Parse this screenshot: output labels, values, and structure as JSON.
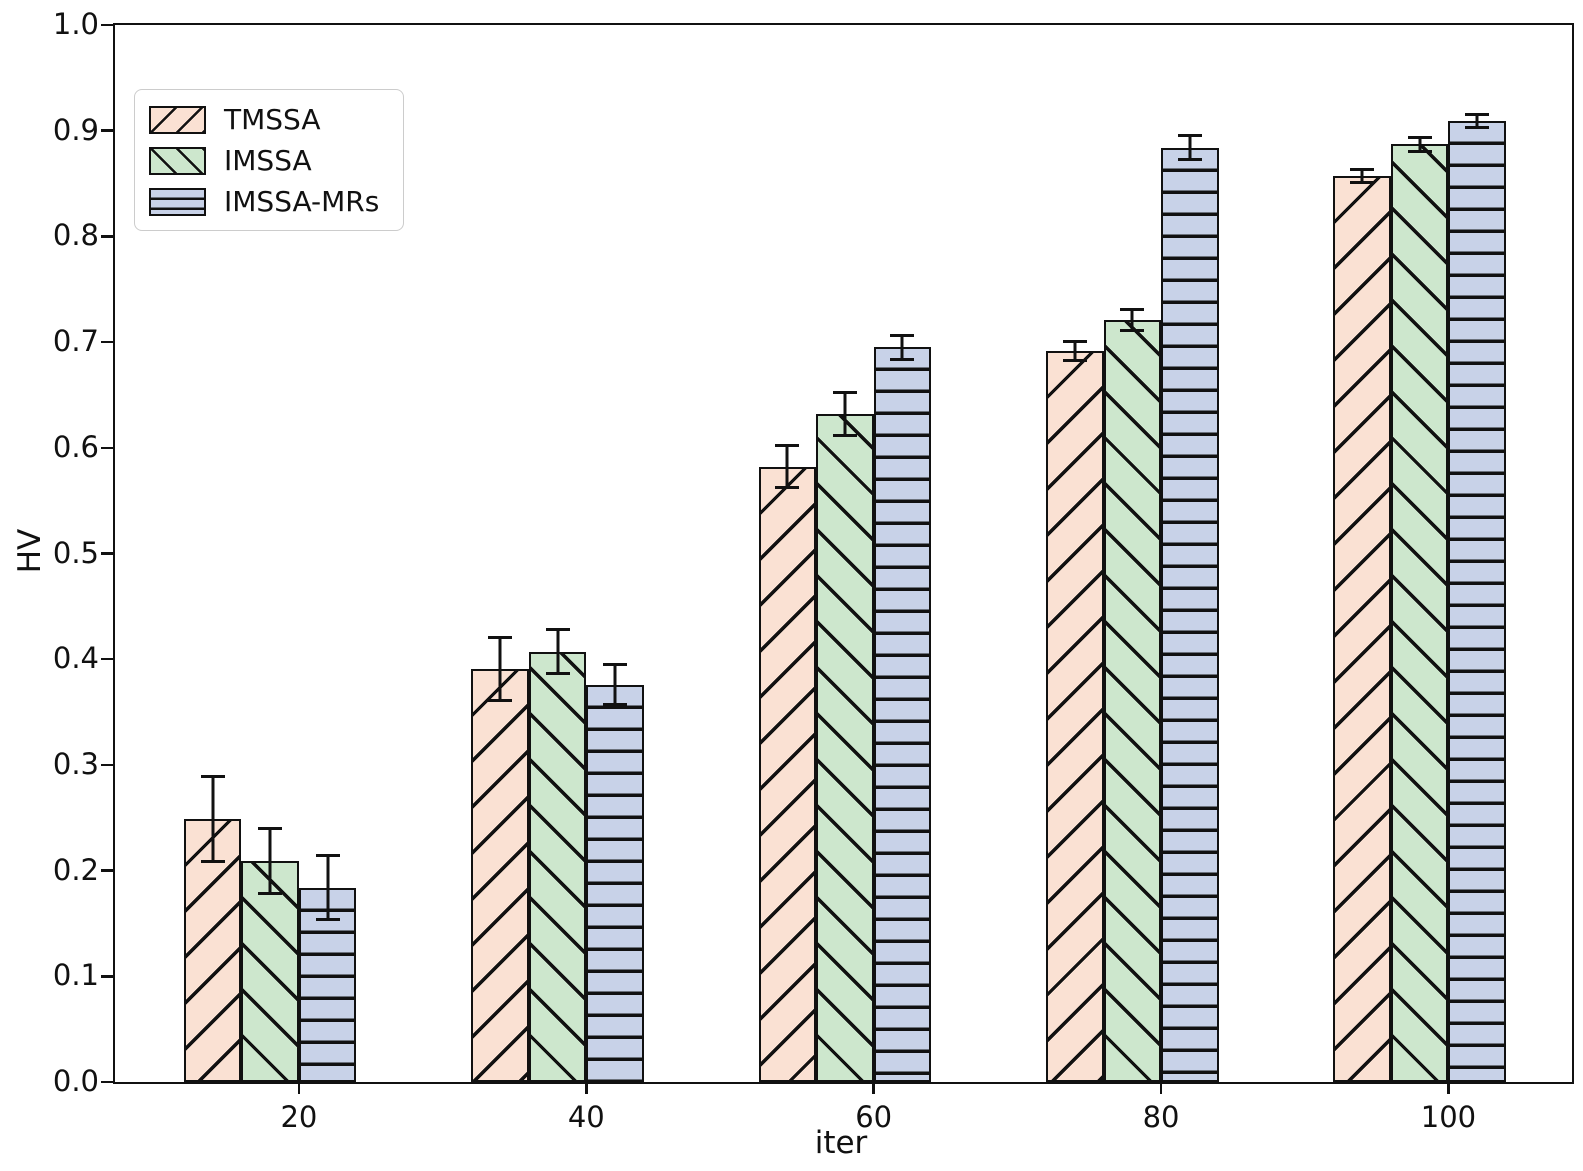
{
  "chart_data": {
    "type": "bar",
    "title": "",
    "xlabel": "iter",
    "ylabel": "HV",
    "categories": [
      20,
      40,
      60,
      80,
      100
    ],
    "series": [
      {
        "name": "TMSSA",
        "fill": "#FAE1D3",
        "hatch": "/",
        "values": [
          0.249,
          0.391,
          0.582,
          0.692,
          0.857
        ],
        "errors": [
          0.04,
          0.03,
          0.02,
          0.009,
          0.006
        ]
      },
      {
        "name": "IMSSA",
        "fill": "#CDE7CD",
        "hatch": "\\",
        "values": [
          0.209,
          0.407,
          0.632,
          0.721,
          0.887
        ],
        "errors": [
          0.031,
          0.021,
          0.02,
          0.01,
          0.007
        ]
      },
      {
        "name": "IMSSA-MRs",
        "fill": "#C8D2E8",
        "hatch": "-",
        "values": [
          0.184,
          0.376,
          0.695,
          0.884,
          0.909
        ],
        "errors": [
          0.03,
          0.019,
          0.011,
          0.011,
          0.006
        ]
      }
    ],
    "xlim": [
      7.2,
      108.6
    ],
    "ylim": [
      0.0,
      1.0
    ],
    "yticks": [
      "0.0",
      "0.1",
      "0.2",
      "0.3",
      "0.4",
      "0.5",
      "0.6",
      "0.7",
      "0.8",
      "0.9",
      "1.0"
    ],
    "bar_width_units": 4,
    "edge_color": "#111111",
    "grid": false,
    "legend_position": "upper-left"
  }
}
